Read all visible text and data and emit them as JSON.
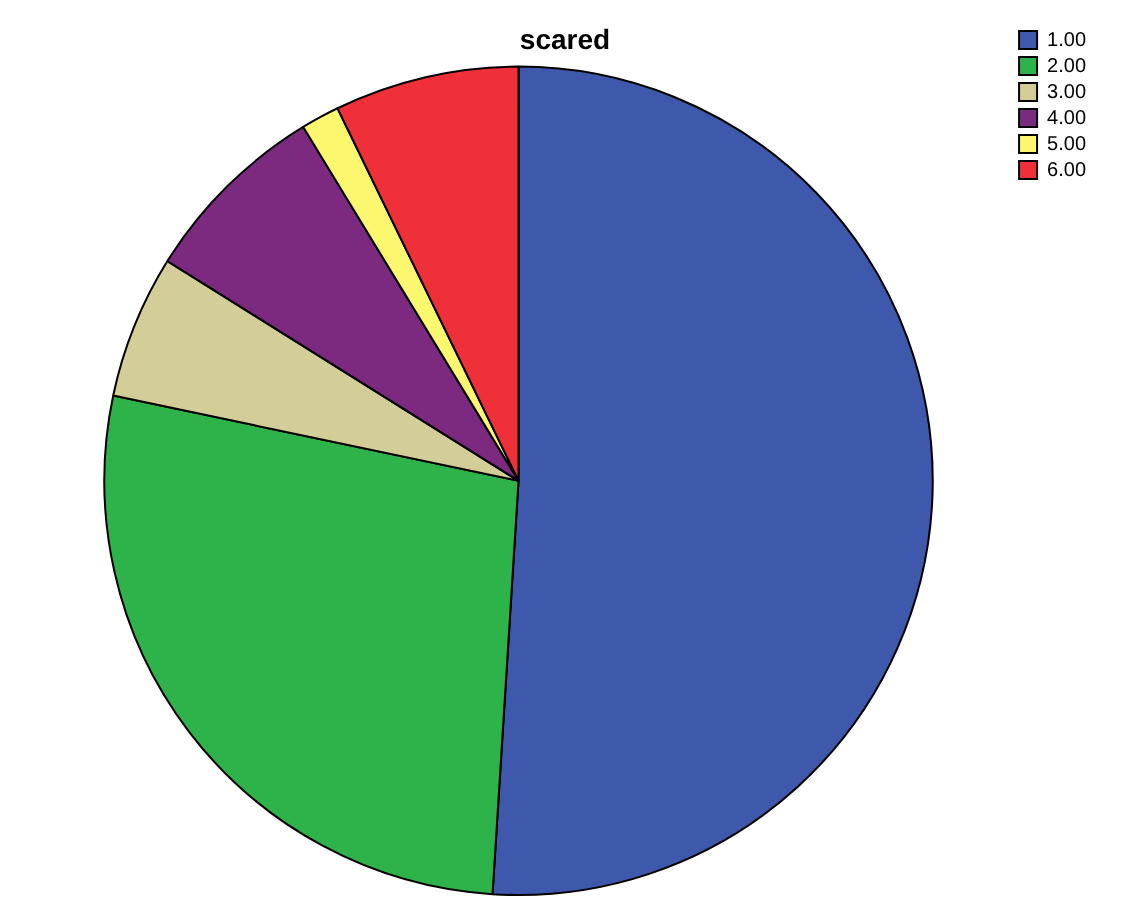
{
  "chart_data": {
    "type": "pie",
    "title": "scared",
    "categories": [
      "1.00",
      "2.00",
      "3.00",
      "4.00",
      "5.00",
      "6.00"
    ],
    "values": [
      51,
      27.3,
      5.6,
      7.4,
      1.5,
      7.2
    ],
    "colors": [
      "#3e58ac",
      "#2db34a",
      "#d3ce97",
      "#7b2a80",
      "#fbf86f",
      "#ef3038"
    ],
    "legend": "top right"
  }
}
